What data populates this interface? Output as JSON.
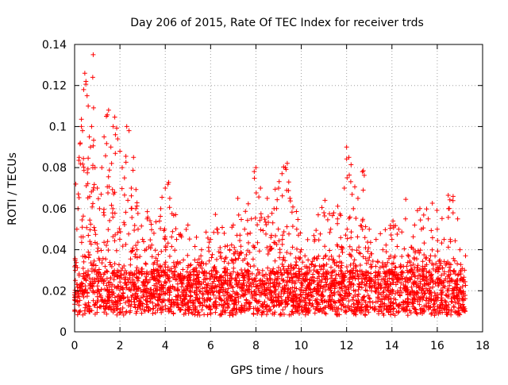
{
  "chart_data": {
    "type": "scatter",
    "title": "Day 206 of 2015, Rate Of TEC Index for receiver trds",
    "xlabel": "GPS time / hours",
    "ylabel": "ROTI / TECUs",
    "xlim": [
      0,
      18
    ],
    "ylim": [
      0,
      0.14
    ],
    "x_ticks": [
      0,
      2,
      4,
      6,
      8,
      10,
      12,
      14,
      16,
      18
    ],
    "y_ticks": [
      0,
      0.02,
      0.04,
      0.06,
      0.08,
      0.1,
      0.12,
      0.14
    ],
    "x_tick_labels": [
      "0",
      "2",
      "4",
      "6",
      "8",
      "10",
      "12",
      "14",
      "16",
      "18"
    ],
    "y_tick_labels": [
      "0",
      "0.02",
      "0.04",
      "0.06",
      "0.08",
      "0.1",
      "0.12",
      "0.14"
    ],
    "grid": true,
    "marker": "+",
    "marker_color": "#ff0000",
    "series": [
      {
        "name": "ROTI",
        "points": [
          [
            0.0,
            0.018
          ],
          [
            0.05,
            0.072
          ],
          [
            0.1,
            0.05
          ],
          [
            0.15,
            0.06
          ],
          [
            0.2,
            0.085
          ],
          [
            0.25,
            0.092
          ],
          [
            0.3,
            0.1
          ],
          [
            0.35,
            0.098
          ],
          [
            0.4,
            0.118
          ],
          [
            0.45,
            0.126
          ],
          [
            0.5,
            0.122
          ],
          [
            0.55,
            0.115
          ],
          [
            0.6,
            0.11
          ],
          [
            0.65,
            0.095
          ],
          [
            0.7,
            0.09
          ],
          [
            0.75,
            0.1
          ],
          [
            0.8,
            0.124
          ],
          [
            0.82,
            0.135
          ],
          [
            0.9,
            0.08
          ],
          [
            1.0,
            0.07
          ],
          [
            1.1,
            0.06
          ],
          [
            1.2,
            0.08
          ],
          [
            1.3,
            0.095
          ],
          [
            1.4,
            0.105
          ],
          [
            1.5,
            0.108
          ],
          [
            1.6,
            0.09
          ],
          [
            1.7,
            0.1
          ],
          [
            1.8,
            0.096
          ],
          [
            1.9,
            0.094
          ],
          [
            2.0,
            0.088
          ],
          [
            2.1,
            0.08
          ],
          [
            2.2,
            0.075
          ],
          [
            2.3,
            0.1
          ],
          [
            2.4,
            0.098
          ],
          [
            2.5,
            0.07
          ],
          [
            2.6,
            0.085
          ],
          [
            2.7,
            0.06
          ],
          [
            2.8,
            0.05
          ],
          [
            3.0,
            0.045
          ],
          [
            3.2,
            0.055
          ],
          [
            3.5,
            0.048
          ],
          [
            3.8,
            0.06
          ],
          [
            4.0,
            0.07
          ],
          [
            4.2,
            0.065
          ],
          [
            4.5,
            0.045
          ],
          [
            4.8,
            0.035
          ],
          [
            5.0,
            0.052
          ],
          [
            5.3,
            0.035
          ],
          [
            5.6,
            0.04
          ],
          [
            6.0,
            0.045
          ],
          [
            6.3,
            0.05
          ],
          [
            6.6,
            0.048
          ],
          [
            7.0,
            0.052
          ],
          [
            7.2,
            0.065
          ],
          [
            7.5,
            0.05
          ],
          [
            7.8,
            0.055
          ],
          [
            8.0,
            0.08
          ],
          [
            8.2,
            0.07
          ],
          [
            8.5,
            0.065
          ],
          [
            8.8,
            0.06
          ],
          [
            9.0,
            0.07
          ],
          [
            9.3,
            0.08
          ],
          [
            9.5,
            0.065
          ],
          [
            9.8,
            0.05
          ],
          [
            10.0,
            0.04
          ],
          [
            10.3,
            0.035
          ],
          [
            10.6,
            0.045
          ],
          [
            11.0,
            0.058
          ],
          [
            11.3,
            0.05
          ],
          [
            11.6,
            0.055
          ],
          [
            11.9,
            0.07
          ],
          [
            12.0,
            0.09
          ],
          [
            12.1,
            0.085
          ],
          [
            12.3,
            0.06
          ],
          [
            12.5,
            0.065
          ],
          [
            12.7,
            0.078
          ],
          [
            13.0,
            0.05
          ],
          [
            13.3,
            0.045
          ],
          [
            13.6,
            0.04
          ],
          [
            14.0,
            0.045
          ],
          [
            14.3,
            0.05
          ],
          [
            14.6,
            0.055
          ],
          [
            15.0,
            0.052
          ],
          [
            15.3,
            0.05
          ],
          [
            15.6,
            0.055
          ],
          [
            16.0,
            0.05
          ],
          [
            16.3,
            0.045
          ],
          [
            16.5,
            0.06
          ],
          [
            16.7,
            0.066
          ],
          [
            16.9,
            0.055
          ],
          [
            17.0,
            0.04
          ],
          [
            17.2,
            0.03
          ]
        ]
      }
    ]
  }
}
